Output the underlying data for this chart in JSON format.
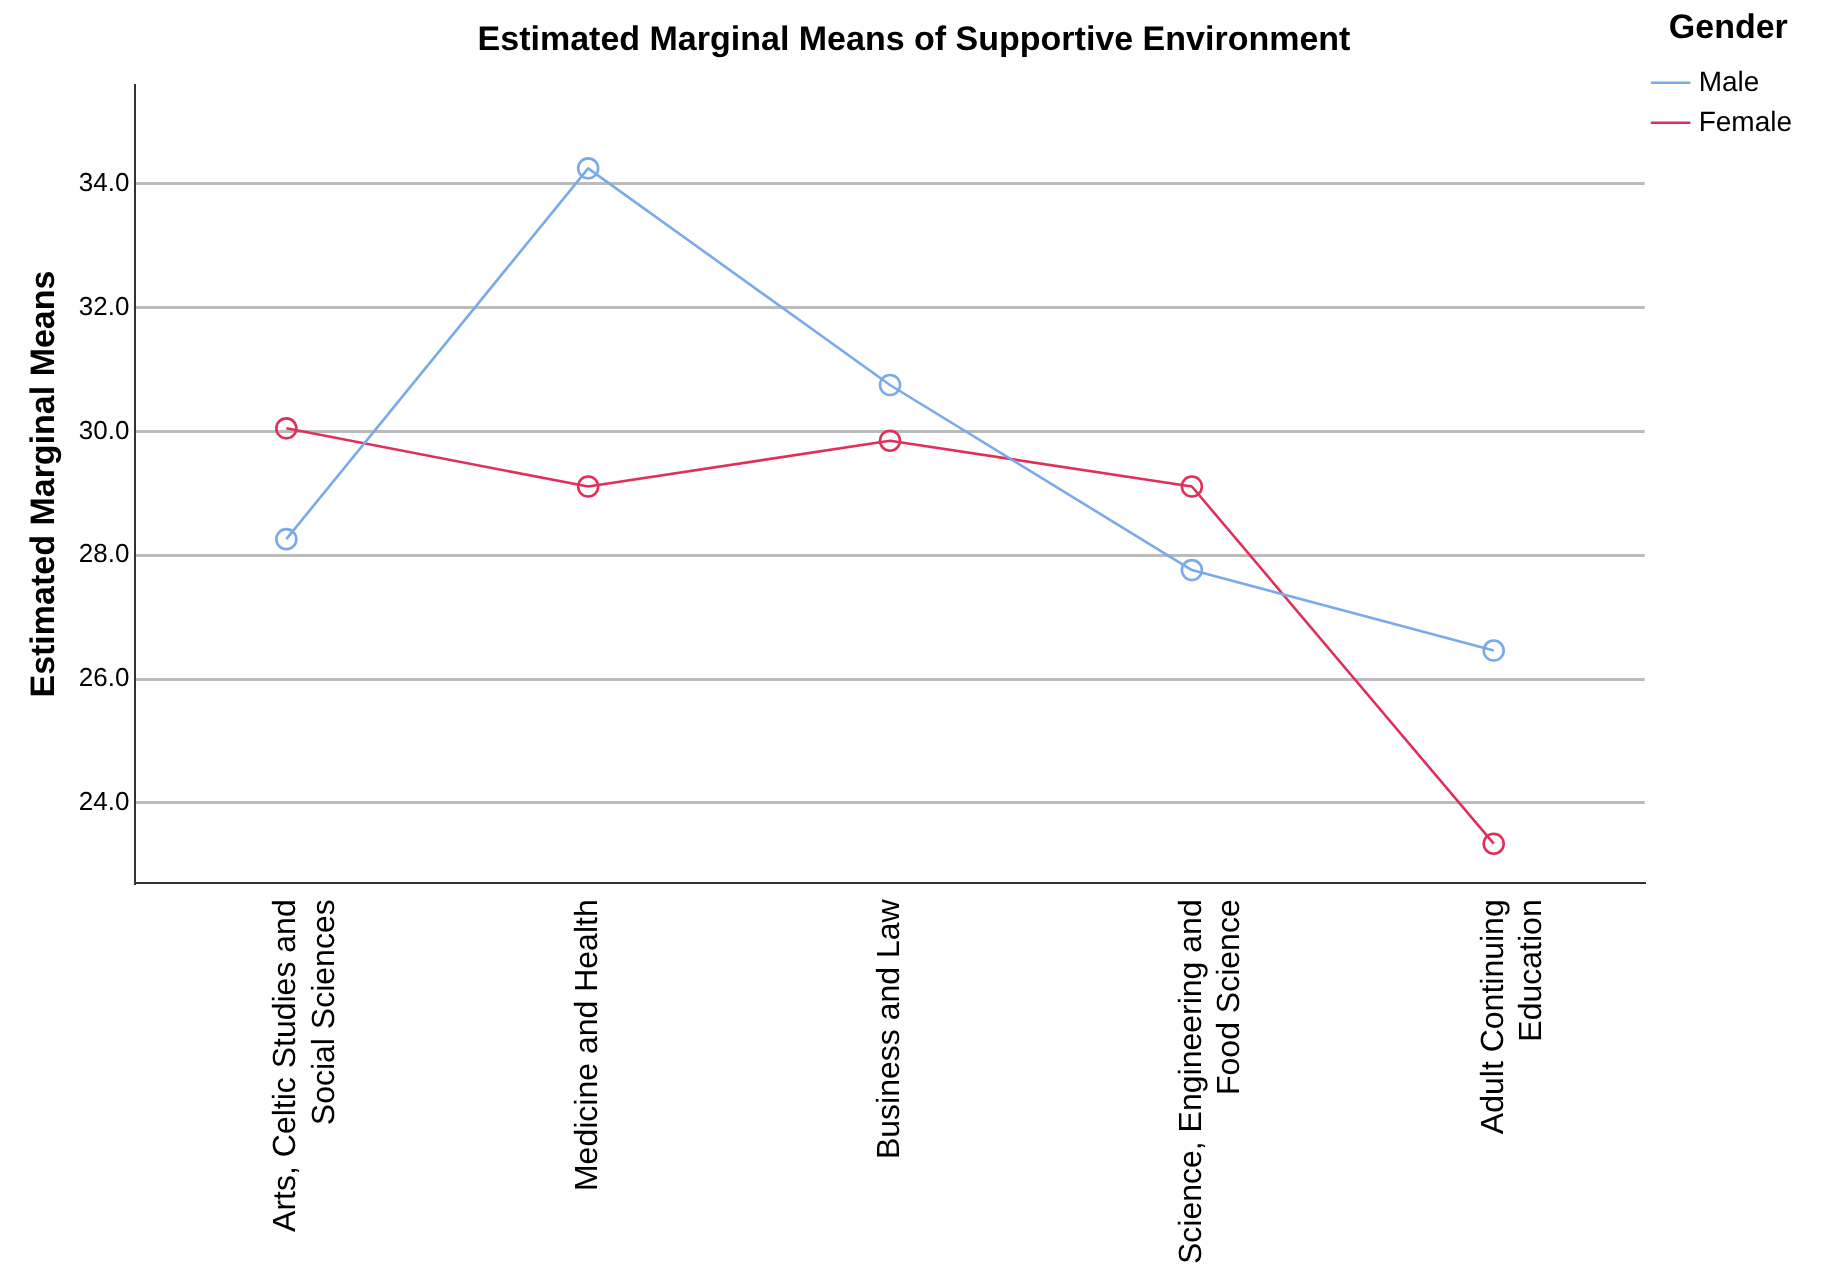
{
  "chart_data": {
    "type": "line",
    "title": "Estimated Marginal Means of Supportive Environment",
    "ylabel": "Estimated Marginal Means",
    "legend_title": "Gender",
    "categories": [
      "Arts, Celtic Studies and Social Sciences",
      "Medicine and Health",
      "Business and Law",
      "Science, Engineering and Food Science",
      "Adult Continuing Education"
    ],
    "series": [
      {
        "name": "Male",
        "color": "#7aaaea",
        "values": [
          28.26,
          34.25,
          30.75,
          27.76,
          26.46
        ]
      },
      {
        "name": "Female",
        "color": "#e0305a",
        "values": [
          30.05,
          29.11,
          29.85,
          29.11,
          23.34
        ]
      }
    ],
    "ylim": [
      22.7,
      35.6
    ],
    "yticks": [
      {
        "value": 24,
        "label": "24.0"
      },
      {
        "value": 26,
        "label": "26.0"
      },
      {
        "value": 28,
        "label": "28.0"
      },
      {
        "value": 30,
        "label": "30.0"
      },
      {
        "value": 32,
        "label": "32.0"
      },
      {
        "value": 34,
        "label": "34.0"
      }
    ],
    "grid": "y",
    "legend": "top right",
    "marker": "circle",
    "line_style": "solid"
  }
}
